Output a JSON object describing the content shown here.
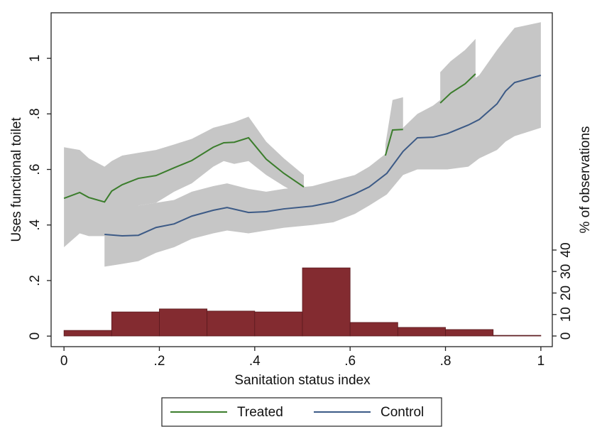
{
  "chart_data": {
    "type": "line",
    "xlabel": "Sanitation status index",
    "ylabel": "Uses functional toilet",
    "y2label": "% of observations",
    "xlim": [
      -0.027,
      1.024
    ],
    "ylim": [
      -0.038,
      1.164
    ],
    "y2lim": [
      -4.96,
      150.4
    ],
    "xticks": [
      0,
      {
        "value": 0.2,
        "label": ".2"
      },
      {
        "value": 0.4,
        "label": ".4"
      },
      {
        "value": 0.6,
        "label": ".6"
      },
      {
        "value": 0.8,
        "label": ".8"
      },
      1
    ],
    "yticks": [
      0,
      {
        "value": 0.2,
        "label": ".2"
      },
      {
        "value": 0.4,
        "label": ".4"
      },
      {
        "value": 0.6,
        "label": ".6"
      },
      {
        "value": 0.8,
        "label": ".8"
      },
      1
    ],
    "y2ticks": [
      0,
      10,
      20,
      30,
      40
    ],
    "band_color": "#c6c6c6",
    "series": [
      {
        "name": "Treated",
        "color": "#3b7d2c",
        "x": [
          0,
          0.033,
          0.052,
          0.085,
          0.1,
          0.122,
          0.156,
          0.193,
          0.231,
          0.268,
          0.313,
          0.335,
          0.357,
          0.387,
          0.424,
          0.461,
          0.503,
          null,
          0.674,
          0.689,
          0.711,
          null,
          0.789,
          0.811,
          0.841,
          0.863
        ],
        "values": [
          0.496,
          0.517,
          0.499,
          0.483,
          0.522,
          0.545,
          0.568,
          0.578,
          0.606,
          0.632,
          0.68,
          0.696,
          0.698,
          0.714,
          0.637,
          0.586,
          0.537,
          null,
          0.65,
          0.742,
          0.744,
          null,
          0.839,
          0.875,
          0.908,
          0.944
        ],
        "ci_high": [
          0.68,
          0.67,
          0.64,
          0.61,
          0.63,
          0.65,
          0.66,
          0.67,
          0.69,
          0.71,
          0.75,
          0.76,
          0.77,
          0.79,
          0.7,
          0.64,
          0.58,
          null,
          0.69,
          0.85,
          0.86,
          null,
          0.95,
          0.99,
          1.03,
          1.07
        ],
        "ci_low": [
          0.32,
          0.37,
          0.36,
          0.36,
          0.41,
          0.44,
          0.47,
          0.48,
          0.52,
          0.55,
          0.61,
          0.63,
          0.62,
          0.63,
          0.58,
          0.54,
          0.5,
          null,
          0.61,
          0.63,
          0.63,
          null,
          0.73,
          0.77,
          0.8,
          0.82
        ]
      },
      {
        "name": "Control",
        "color": "#3c5a86",
        "x": [
          0.085,
          0.122,
          0.156,
          0.193,
          0.231,
          0.268,
          0.313,
          0.342,
          0.387,
          0.424,
          0.461,
          0.521,
          0.565,
          0.61,
          0.64,
          0.677,
          0.711,
          0.741,
          0.774,
          0.804,
          0.848,
          0.871,
          0.908,
          0.926,
          0.945,
          1.0
        ],
        "values": [
          0.366,
          0.361,
          0.363,
          0.391,
          0.404,
          0.432,
          0.453,
          0.463,
          0.445,
          0.448,
          0.458,
          0.468,
          0.483,
          0.512,
          0.537,
          0.586,
          0.665,
          0.714,
          0.716,
          0.729,
          0.76,
          0.78,
          0.836,
          0.882,
          0.913,
          0.939
        ],
        "ci_high": [
          0.42,
          0.46,
          0.47,
          0.48,
          0.49,
          0.52,
          0.54,
          0.55,
          0.53,
          0.52,
          0.53,
          0.54,
          0.56,
          0.58,
          0.61,
          0.66,
          0.75,
          0.8,
          0.83,
          0.87,
          0.91,
          0.94,
          1.03,
          1.07,
          1.11,
          1.13
        ],
        "ci_low": [
          0.25,
          0.26,
          0.27,
          0.3,
          0.32,
          0.35,
          0.37,
          0.38,
          0.37,
          0.38,
          0.39,
          0.4,
          0.41,
          0.44,
          0.47,
          0.51,
          0.58,
          0.6,
          0.6,
          0.6,
          0.61,
          0.64,
          0.67,
          0.7,
          0.72,
          0.75
        ]
      }
    ],
    "histogram": {
      "axis": "y2",
      "color": "#832b30",
      "bins": [
        0,
        0.1,
        0.2,
        0.3,
        0.4,
        0.5,
        0.6,
        0.7,
        0.8,
        0.9,
        1
      ],
      "values": [
        2.6,
        11.2,
        12.6,
        11.6,
        11.2,
        31.7,
        6.3,
        4,
        3,
        0.3
      ]
    }
  }
}
